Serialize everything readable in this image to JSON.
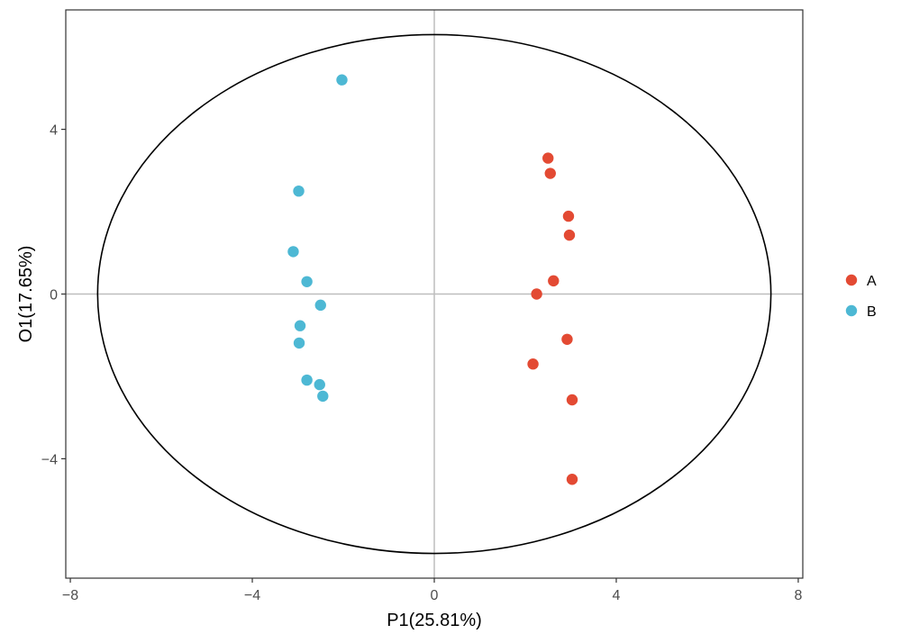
{
  "chart_data": {
    "type": "scatter",
    "title": "",
    "xlabel": "P1(25.81%)",
    "ylabel": "O1(17.65%)",
    "xlim": [
      -8.1,
      8.1
    ],
    "ylim": [
      -6.9,
      6.9
    ],
    "xticks": [
      -8,
      -4,
      0,
      4,
      8
    ],
    "yticks": [
      -4,
      0,
      4
    ],
    "xtick_labels": [
      "−8",
      "−4",
      "0",
      "4",
      "8"
    ],
    "ytick_labels": [
      "−4",
      "0",
      "4"
    ],
    "grid": false,
    "reference_lines": {
      "x": 0,
      "y": 0,
      "color": "#bebebe"
    },
    "ellipse": {
      "center": [
        0,
        0
      ],
      "rx": 7.4,
      "ry": 6.3,
      "color": "#000000"
    },
    "legend": {
      "position": "right",
      "entries": [
        "A",
        "B"
      ]
    },
    "series": [
      {
        "name": "A",
        "color": "#e34a33",
        "points": [
          {
            "x": 2.5,
            "y": 3.3
          },
          {
            "x": 2.55,
            "y": 2.93
          },
          {
            "x": 2.95,
            "y": 1.89
          },
          {
            "x": 2.97,
            "y": 1.43
          },
          {
            "x": 2.62,
            "y": 0.32
          },
          {
            "x": 2.25,
            "y": 0.0
          },
          {
            "x": 2.92,
            "y": -1.1
          },
          {
            "x": 2.17,
            "y": -1.7
          },
          {
            "x": 3.03,
            "y": -2.57
          },
          {
            "x": 3.03,
            "y": -4.5
          }
        ]
      },
      {
        "name": "B",
        "color": "#4db8d4",
        "points": [
          {
            "x": -2.03,
            "y": 5.2
          },
          {
            "x": -2.98,
            "y": 2.5
          },
          {
            "x": -3.1,
            "y": 1.03
          },
          {
            "x": -2.8,
            "y": 0.3
          },
          {
            "x": -2.5,
            "y": -0.27
          },
          {
            "x": -2.95,
            "y": -0.77
          },
          {
            "x": -2.97,
            "y": -1.19
          },
          {
            "x": -2.8,
            "y": -2.09
          },
          {
            "x": -2.52,
            "y": -2.2
          },
          {
            "x": -2.45,
            "y": -2.48
          }
        ]
      }
    ]
  }
}
